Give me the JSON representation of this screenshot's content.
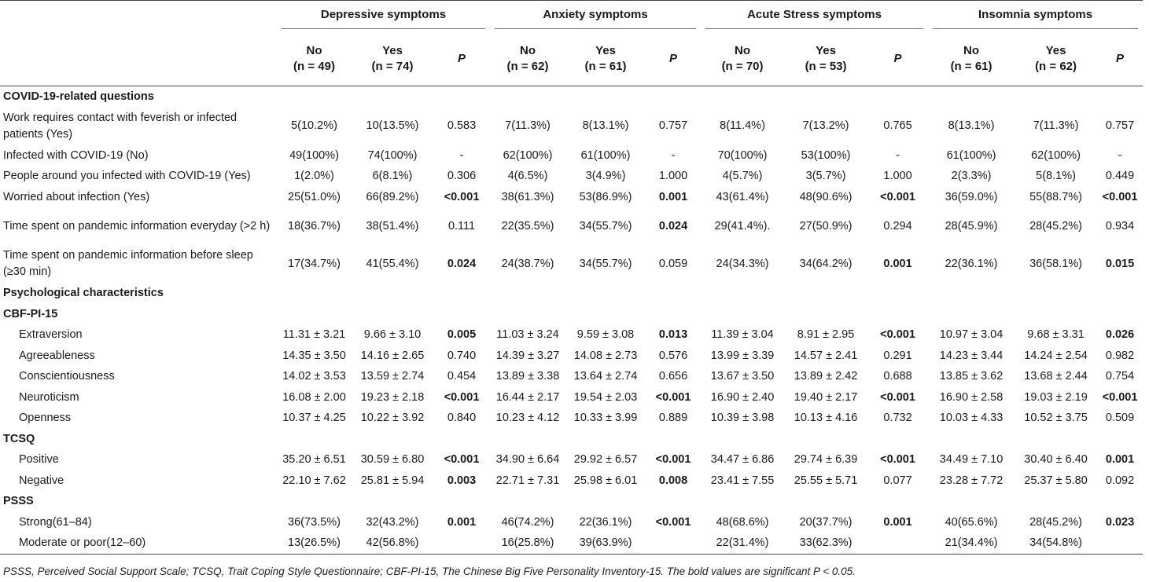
{
  "groups": [
    "Depressive symptoms",
    "Anxiety symptoms",
    "Acute Stress symptoms",
    "Insomnia symptoms"
  ],
  "subheaders": [
    {
      "label": "No",
      "n": "(n = 49)"
    },
    {
      "label": "Yes",
      "n": "(n = 74)"
    },
    {
      "label": "P",
      "n": ""
    },
    {
      "label": "No",
      "n": "(n = 62)"
    },
    {
      "label": "Yes",
      "n": "(n = 61)"
    },
    {
      "label": "P",
      "n": ""
    },
    {
      "label": "No",
      "n": "(n = 70)"
    },
    {
      "label": "Yes",
      "n": "(n = 53)"
    },
    {
      "label": "P",
      "n": ""
    },
    {
      "label": "No",
      "n": "(n = 61)"
    },
    {
      "label": "Yes",
      "n": "(n = 62)"
    },
    {
      "label": "P",
      "n": ""
    }
  ],
  "rows": [
    {
      "type": "section",
      "label": "COVID-19-related questions"
    },
    {
      "type": "data",
      "label": "Work requires contact with feverish or infected patients (Yes)",
      "tall": true,
      "cells": [
        "5(10.2%)",
        "10(13.5%)",
        "0.583",
        "7(11.3%)",
        "8(13.1%)",
        "0.757",
        "8(11.4%)",
        "7(13.2%)",
        "0.765",
        "8(13.1%)",
        "7(11.3%)",
        "0.757"
      ],
      "bold": []
    },
    {
      "type": "data",
      "label": "Infected with COVID-19 (No)",
      "cells": [
        "49(100%)",
        "74(100%)",
        "-",
        "62(100%)",
        "61(100%)",
        "-",
        "70(100%)",
        "53(100%)",
        "-",
        "61(100%)",
        "62(100%)",
        "-"
      ],
      "bold": []
    },
    {
      "type": "data",
      "label": "People around you infected with COVID-19 (Yes)",
      "cells": [
        "1(2.0%)",
        "6(8.1%)",
        "0.306",
        "4(6.5%)",
        "3(4.9%)",
        "1.000",
        "4(5.7%)",
        "3(5.7%)",
        "1.000",
        "2(3.3%)",
        "5(8.1%)",
        "0.449"
      ],
      "bold": []
    },
    {
      "type": "data",
      "label": "Worried about infection (Yes)",
      "cells": [
        "25(51.0%)",
        "66(89.2%)",
        "<0.001",
        "38(61.3%)",
        "53(86.9%)",
        "0.001",
        "43(61.4%)",
        "48(90.6%)",
        "<0.001",
        "36(59.0%)",
        "55(88.7%)",
        "<0.001"
      ],
      "bold": [
        2,
        5,
        8,
        11
      ]
    },
    {
      "type": "data",
      "label": "Time spent on pandemic information everyday (>2 h)",
      "tall": true,
      "cells": [
        "18(36.7%)",
        "38(51.4%)",
        "0.111",
        "22(35.5%)",
        "34(55.7%)",
        "0.024",
        "29(41.4%).",
        "27(50.9%)",
        "0.294",
        "28(45.9%)",
        "28(45.2%)",
        "0.934"
      ],
      "bold": [
        5
      ]
    },
    {
      "type": "data",
      "label": "Time spent on pandemic information before sleep (≥30 min)",
      "tall": true,
      "cells": [
        "17(34.7%)",
        "41(55.4%)",
        "0.024",
        "24(38.7%)",
        "34(55.7%)",
        "0.059",
        "24(34.3%)",
        "34(64.2%)",
        "0.001",
        "22(36.1%)",
        "36(58.1%)",
        "0.015"
      ],
      "bold": [
        2,
        8,
        11
      ]
    },
    {
      "type": "section",
      "label": "Psychological characteristics"
    },
    {
      "type": "section",
      "label": "CBF-PI-15"
    },
    {
      "type": "data",
      "label": "Extraversion",
      "indent": true,
      "cells": [
        "11.31 ± 3.21",
        "9.66 ± 3.10",
        "0.005",
        "11.03 ± 3.24",
        "9.59 ± 3.08",
        "0.013",
        "11.39 ± 3.04",
        "8.91 ± 2.95",
        "<0.001",
        "10.97 ± 3.04",
        "9.68 ± 3.31",
        "0.026"
      ],
      "bold": [
        2,
        5,
        8,
        11
      ]
    },
    {
      "type": "data",
      "label": "Agreeableness",
      "indent": true,
      "cells": [
        "14.35 ± 3.50",
        "14.16 ± 2.65",
        "0.740",
        "14.39 ± 3.27",
        "14.08 ± 2.73",
        "0.576",
        "13.99 ± 3.39",
        "14.57 ± 2.41",
        "0.291",
        "14.23 ± 3.44",
        "14.24 ± 2.54",
        "0.982"
      ],
      "bold": []
    },
    {
      "type": "data",
      "label": "Conscientiousness",
      "indent": true,
      "cells": [
        "14.02 ± 3.53",
        "13.59 ± 2.74",
        "0.454",
        "13.89 ± 3.38",
        "13.64 ± 2.74",
        "0.656",
        "13.67 ± 3.50",
        "13.89 ± 2.42",
        "0.688",
        "13.85 ± 3.62",
        "13.68 ± 2.44",
        "0.754"
      ],
      "bold": []
    },
    {
      "type": "data",
      "label": "Neuroticism",
      "indent": true,
      "cells": [
        "16.08 ± 2.00",
        "19.23 ± 2.18",
        "<0.001",
        "16.44 ± 2.17",
        "19.54 ± 2.03",
        "<0.001",
        "16.90 ± 2.40",
        "19.40 ± 2.17",
        "<0.001",
        "16.90 ± 2.58",
        "19.03 ± 2.19",
        "<0.001"
      ],
      "bold": [
        2,
        5,
        8,
        11
      ]
    },
    {
      "type": "data",
      "label": "Openness",
      "indent": true,
      "cells": [
        "10.37 ± 4.25",
        "10.22 ± 3.92",
        "0.840",
        "10.23 ± 4.12",
        "10.33 ± 3.99",
        "0.889",
        "10.39 ± 3.98",
        "10.13 ± 4.16",
        "0.732",
        "10.03 ± 4.33",
        "10.52 ± 3.75",
        "0.509"
      ],
      "bold": []
    },
    {
      "type": "section",
      "label": "TCSQ"
    },
    {
      "type": "data",
      "label": "Positive",
      "indent": true,
      "cells": [
        "35.20 ± 6.51",
        "30.59 ± 6.80",
        "<0.001",
        "34.90 ± 6.64",
        "29.92 ± 6.57",
        "<0.001",
        "34.47 ± 6.86",
        "29.74 ± 6.39",
        "<0.001",
        "34.49 ± 7.10",
        "30.40 ± 6.40",
        "0.001"
      ],
      "bold": [
        2,
        5,
        8,
        11
      ]
    },
    {
      "type": "data",
      "label": "Negative",
      "indent": true,
      "cells": [
        "22.10 ± 7.62",
        "25.81 ± 5.94",
        "0.003",
        "22.71 ± 7.31",
        "25.98 ± 6.01",
        "0.008",
        "23.41 ± 7.55",
        "25.55 ± 5.71",
        "0.077",
        "23.28 ± 7.72",
        "25.37 ± 5.80",
        "0.092"
      ],
      "bold": [
        2,
        5
      ]
    },
    {
      "type": "section",
      "label": "PSSS"
    },
    {
      "type": "data",
      "label": "Strong(61–84)",
      "indent": true,
      "cells": [
        "36(73.5%)",
        "32(43.2%)",
        "0.001",
        "46(74.2%)",
        "22(36.1%)",
        "<0.001",
        "48(68.6%)",
        "20(37.7%)",
        "0.001",
        "40(65.6%)",
        "28(45.2%)",
        "0.023"
      ],
      "bold": [
        2,
        5,
        8,
        11
      ]
    },
    {
      "type": "data",
      "label": "Moderate or poor(12–60)",
      "indent": true,
      "cells": [
        "13(26.5%)",
        "42(56.8%)",
        "",
        "16(25.8%)",
        "39(63.9%)",
        "",
        "22(31.4%)",
        "33(62.3%)",
        "",
        "21(34.4%)",
        "34(54.8%)",
        ""
      ],
      "bold": []
    }
  ],
  "footnote": "PSSS, Perceived Social Support Scale; TCSQ, Trait Coping Style Questionnaire; CBF-PI-15, The Chinese Big Five Personality Inventory-15. The bold values are significant P < 0.05."
}
